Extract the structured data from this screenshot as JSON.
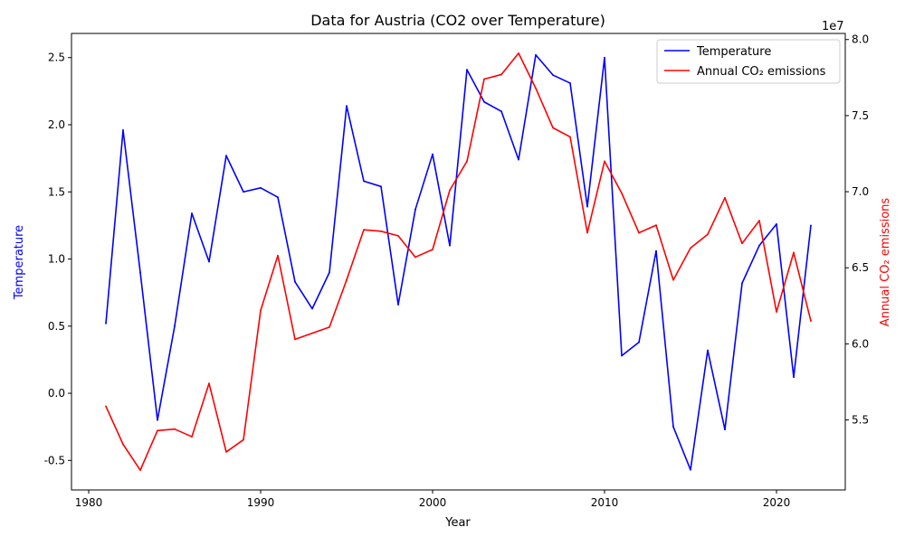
{
  "chart_data": {
    "type": "line",
    "title": "Data for Austria (CO2 over Temperature)",
    "xlabel": "Year",
    "ylabel_left": "Temperature",
    "ylabel_right": "Annual CO₂ emissions",
    "right_axis_multiplier": "1e7",
    "xlim": [
      1979,
      2024
    ],
    "ylim_left": [
      -0.72,
      2.68
    ],
    "ylim_right": [
      50400000,
      80400000
    ],
    "x_ticks": [
      1980,
      1990,
      2000,
      2010,
      2020
    ],
    "y_ticks_left": [
      -0.5,
      0.0,
      0.5,
      1.0,
      1.5,
      2.0,
      2.5
    ],
    "y_ticks_right": [
      5.5,
      6.0,
      6.5,
      7.0,
      7.5,
      8.0
    ],
    "legend_position": "top-right",
    "x": [
      1981,
      1982,
      1983,
      1984,
      1985,
      1986,
      1987,
      1988,
      1989,
      1990,
      1991,
      1992,
      1993,
      1994,
      1995,
      1996,
      1997,
      1998,
      1999,
      2000,
      2001,
      2002,
      2003,
      2004,
      2005,
      2006,
      2007,
      2008,
      2009,
      2010,
      2011,
      2012,
      2013,
      2014,
      2015,
      2016,
      2017,
      2018,
      2019,
      2020,
      2021,
      2022
    ],
    "series": [
      {
        "name": "Temperature",
        "axis": "left",
        "color": "#0000ff",
        "values": [
          0.52,
          1.96,
          0.9,
          -0.2,
          0.5,
          1.34,
          0.98,
          1.77,
          1.5,
          1.53,
          1.46,
          0.83,
          0.63,
          0.9,
          2.14,
          1.58,
          1.54,
          0.66,
          1.37,
          1.78,
          1.1,
          2.41,
          2.17,
          2.1,
          1.74,
          2.52,
          2.37,
          2.31,
          1.39,
          2.5,
          0.28,
          0.38,
          1.06,
          -0.25,
          -0.57,
          0.32,
          -0.27,
          0.82,
          1.1,
          1.26,
          0.12,
          1.25
        ]
      },
      {
        "name": "Annual CO₂ emissions",
        "axis": "right",
        "color": "#ff0000",
        "values": [
          55900000,
          53400000,
          51700000,
          54300000,
          54400000,
          53900000,
          57400000,
          52900000,
          53700000,
          62200000,
          65800000,
          60300000,
          60700000,
          61100000,
          64200000,
          67500000,
          67400000,
          67100000,
          65700000,
          66200000,
          70100000,
          72000000,
          77400000,
          77700000,
          79100000,
          76800000,
          74200000,
          73600000,
          67300000,
          72000000,
          69900000,
          67300000,
          67800000,
          64200000,
          66300000,
          67200000,
          69600000,
          66600000,
          68100000,
          62100000,
          66000000,
          61500000
        ]
      }
    ]
  }
}
